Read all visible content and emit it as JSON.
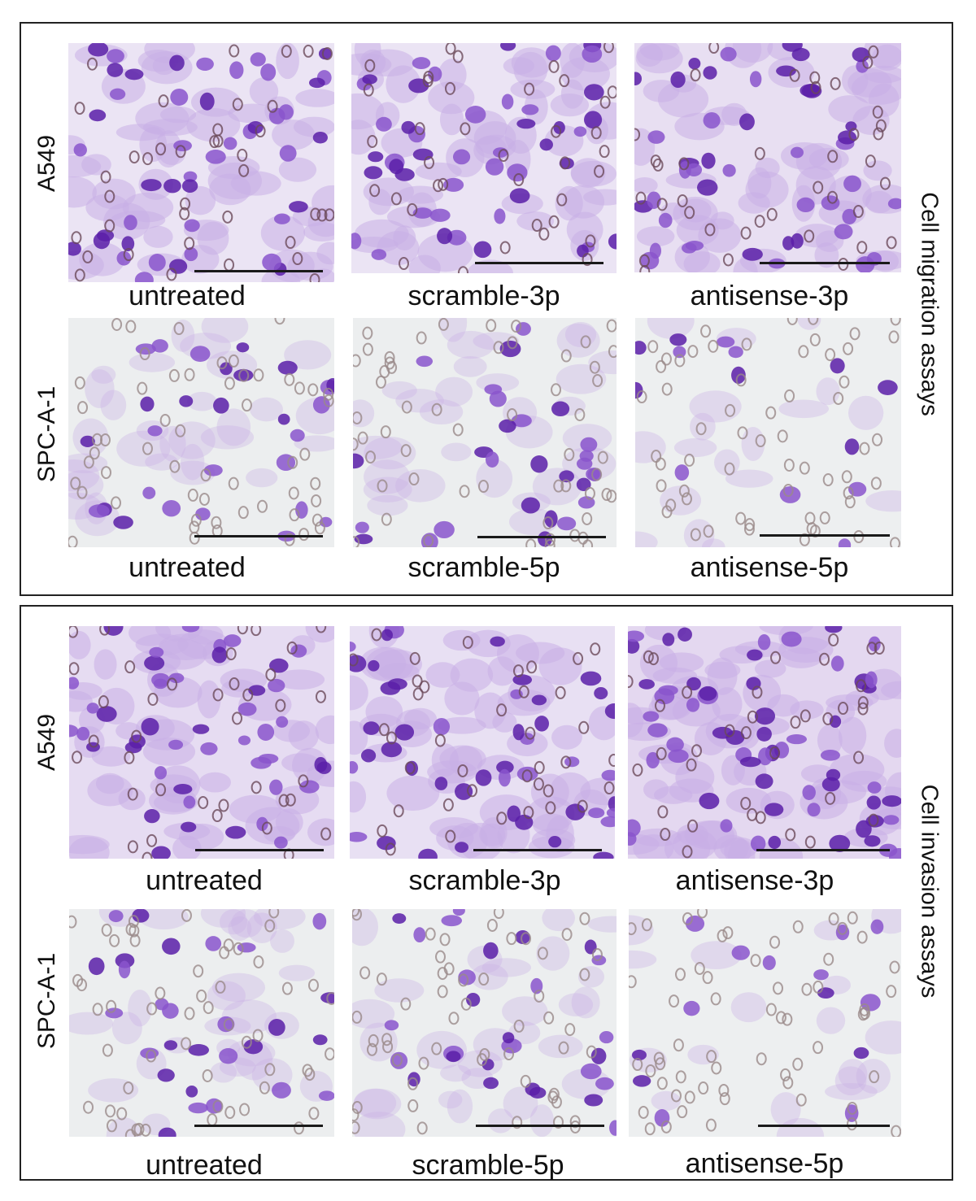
{
  "sections": [
    {
      "side_label": "Cell migration assays",
      "rows": [
        {
          "row_label": "A549",
          "captions": [
            "untreated",
            "scramble-3p",
            "antisense-3p"
          ]
        },
        {
          "row_label": "SPC-A-1",
          "captions": [
            "untreated",
            "scramble-5p",
            "antisense-5p"
          ]
        }
      ]
    },
    {
      "side_label": "Cell invasion assays",
      "rows": [
        {
          "row_label": "A549",
          "captions": [
            "untreated",
            "scramble-3p",
            "antisense-3p"
          ]
        },
        {
          "row_label": "SPC-A-1",
          "captions": [
            "untreated",
            "scramble-5p",
            "antisense-5p"
          ]
        }
      ]
    }
  ],
  "colors": {
    "stain_dense": "#5a1fa8",
    "stain_mid": "#8a55cc",
    "stain_light": "#c9aee6",
    "membrane_pore": "#9a8a8a",
    "background_a549": "#e9e3f3",
    "background_spc": "#eceeef"
  }
}
